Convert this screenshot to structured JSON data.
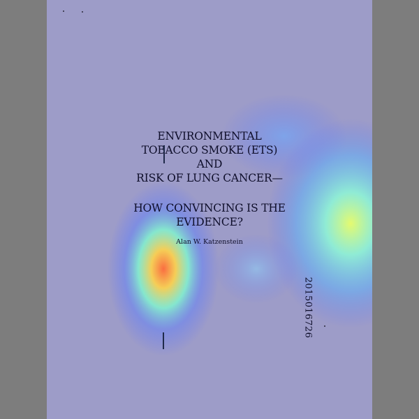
{
  "document": {
    "title_lines": [
      "ENVIRONMENTAL",
      "TOBACCO SMOKE (ETS)",
      "AND",
      "RISK OF LUNG CANCER—",
      "",
      "HOW CONVINCING IS THE",
      "EVIDENCE?"
    ],
    "author": "Alan W. Katzenstein",
    "bates_number": "2015016726"
  },
  "colors": {
    "viewer_background": "#7d7d7d",
    "page_tint": "#9d9cc8",
    "text": "#0e0e2a"
  }
}
